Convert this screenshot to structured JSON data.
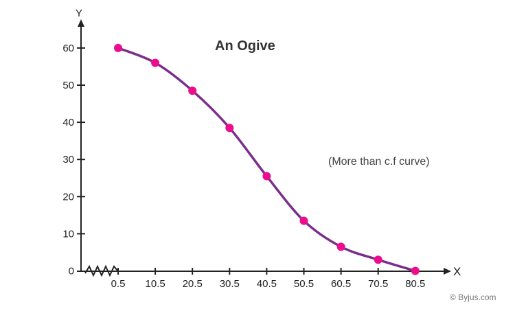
{
  "chart_data": {
    "type": "line",
    "title": "An Ogive",
    "annotation": "(More than c.f curve)",
    "xlabel": "X",
    "ylabel": "Y",
    "x": [
      0.5,
      10.5,
      20.5,
      30.5,
      40.5,
      50.5,
      60.5,
      70.5,
      80.5
    ],
    "x_tick_labels": [
      "0.5",
      "10.5",
      "20.5",
      "30.5",
      "40.5",
      "50.5",
      "60.5",
      "70.5",
      "80.5"
    ],
    "y_ticks": [
      0,
      10,
      20,
      30,
      40,
      50,
      60
    ],
    "y_tick_labels": [
      "0",
      "10",
      "20",
      "30",
      "40",
      "50",
      "60"
    ],
    "series": [
      {
        "values": [
          60,
          56,
          48.5,
          38.5,
          25.5,
          13.5,
          6.5,
          3,
          0
        ]
      }
    ],
    "ylim": [
      0,
      65
    ],
    "x_axis_break": true,
    "smooth": true,
    "grid": false,
    "line_color": "#7b2d8b",
    "marker_color": "#ec0c8c",
    "credit": "© Byjus.com"
  }
}
